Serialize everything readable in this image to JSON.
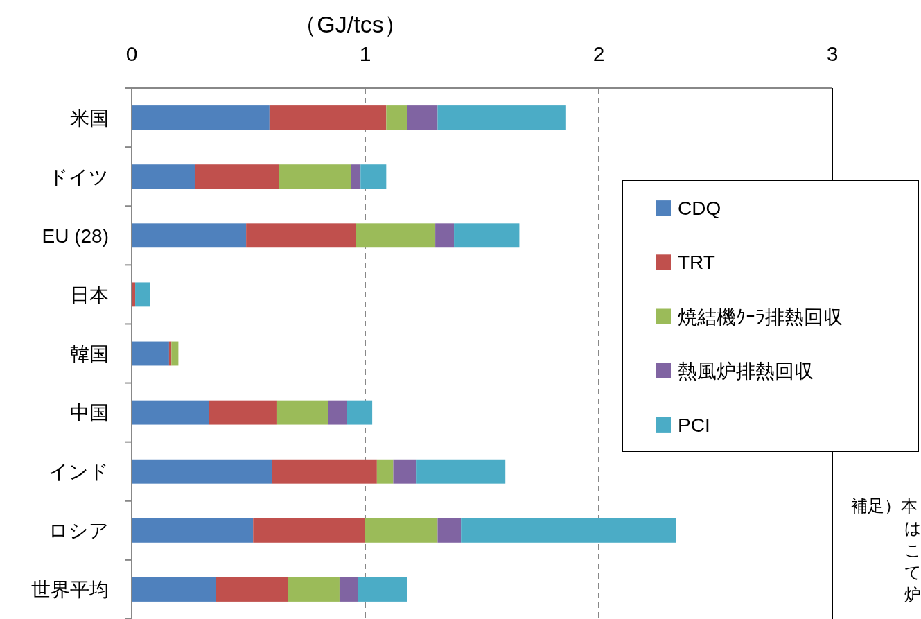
{
  "chart_data": {
    "type": "bar",
    "orientation": "horizontal",
    "stacked": true,
    "xlabel": "（GJ/tcs）",
    "categories": [
      "米国",
      "ドイツ",
      "EU (28)",
      "日本",
      "韓国",
      "中国",
      "インド",
      "ロシア",
      "世界平均"
    ],
    "series": [
      {
        "name": "CDQ",
        "color": "#4f81bd",
        "values": [
          0.59,
          0.27,
          0.49,
          0,
          0.16,
          0.33,
          0.6,
          0.52,
          0.36
        ]
      },
      {
        "name": "TRT",
        "color": "#c0504d",
        "values": [
          0.5,
          0.36,
          0.47,
          0.015,
          0.01,
          0.29,
          0.45,
          0.48,
          0.31
        ]
      },
      {
        "name": "焼結機ｸｰﾗ排熱回収",
        "color": "#9bbb59",
        "values": [
          0.09,
          0.31,
          0.34,
          0,
          0.03,
          0.22,
          0.07,
          0.31,
          0.22
        ]
      },
      {
        "name": "熱風炉排熱回収",
        "color": "#8064a2",
        "values": [
          0.13,
          0.04,
          0.08,
          0,
          0,
          0.08,
          0.1,
          0.1,
          0.08
        ]
      },
      {
        "name": "PCI",
        "color": "#4bacc6",
        "values": [
          0.55,
          0.11,
          0.28,
          0.065,
          0,
          0.11,
          0.38,
          0.92,
          0.21
        ]
      }
    ],
    "xlim": [
      0,
      3
    ],
    "xticks": [
      0,
      1,
      2,
      3
    ],
    "grid": "x",
    "legend": "right",
    "annotations": [
      "補足）本はこて炉"
    ]
  }
}
